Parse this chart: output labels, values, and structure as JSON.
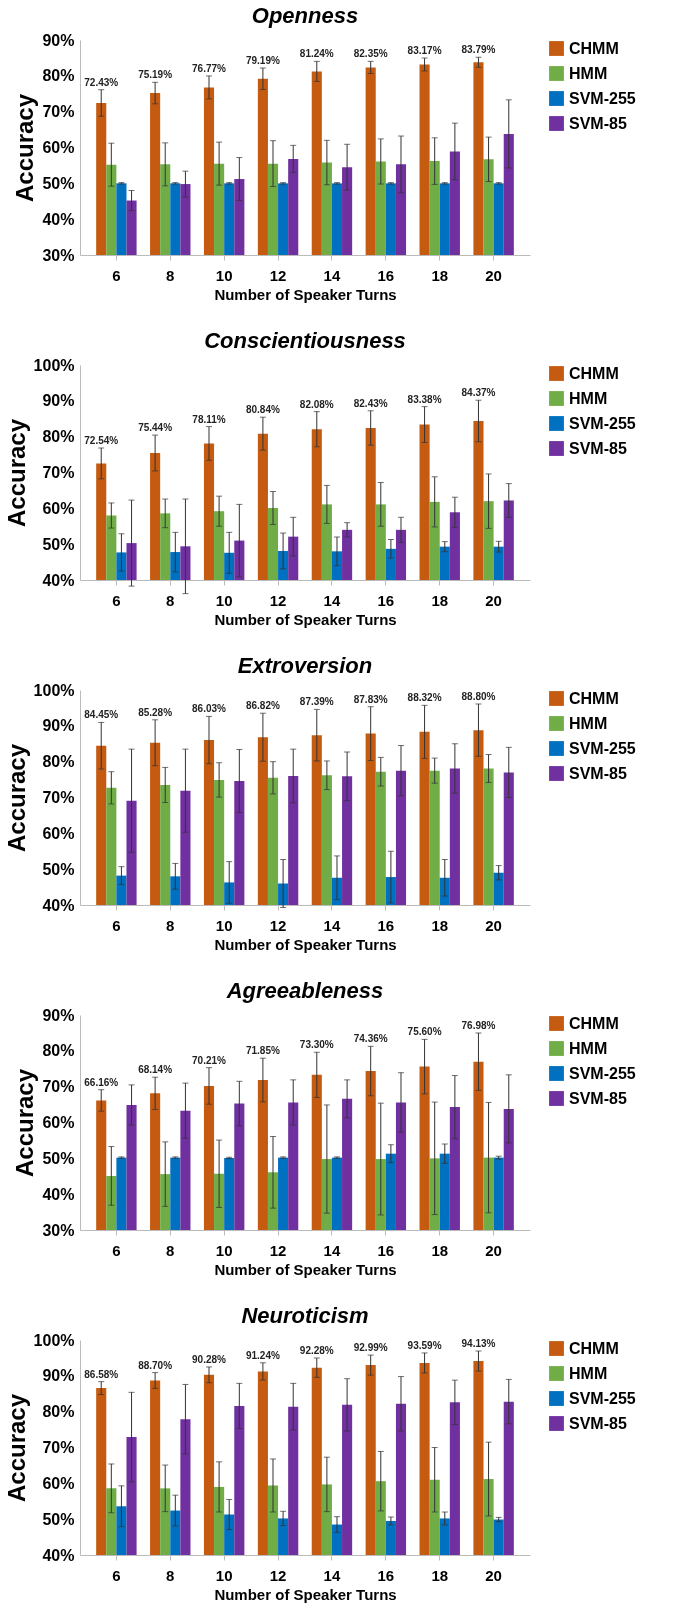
{
  "chart_data": [
    {
      "type": "bar",
      "title": "Openness",
      "xlabel": "Number of Speaker Turns",
      "ylabel": "Accuracy",
      "categories": [
        "6",
        "8",
        "10",
        "12",
        "14",
        "16",
        "18",
        "20"
      ],
      "ylim": [
        30,
        90
      ],
      "yticks": [
        {
          "value": 30,
          "label": "30%"
        },
        {
          "value": 40,
          "label": "40%"
        },
        {
          "value": 50,
          "label": "50%"
        },
        {
          "value": 60,
          "label": "60%"
        },
        {
          "value": 70,
          "label": "70%"
        },
        {
          "value": 80,
          "label": "80%"
        },
        {
          "value": 90,
          "label": "90%"
        }
      ],
      "legend": "right",
      "grid": false,
      "series": [
        {
          "name": "CHMM",
          "color": "#c55a11",
          "values": [
            72.43,
            75.19,
            76.77,
            79.19,
            81.24,
            82.35,
            83.17,
            83.79
          ],
          "errors": [
            3.7,
            3,
            3.2,
            3,
            2.8,
            1.7,
            1.8,
            1.4
          ],
          "value_labels": [
            "72.43%",
            "75.19%",
            "76.77%",
            "79.19%",
            "81.24%",
            "82.35%",
            "83.17%",
            "83.79%"
          ]
        },
        {
          "name": "HMM",
          "color": "#70ad47",
          "values": [
            55.2,
            55.3,
            55.5,
            55.5,
            55.8,
            56.1,
            56.2,
            56.7
          ],
          "errors": [
            6,
            6,
            6,
            6.4,
            6.2,
            6.3,
            6.5,
            6.2
          ]
        },
        {
          "name": "SVM-255",
          "color": "#0070c0",
          "values": [
            50,
            50,
            50,
            50,
            50,
            50,
            50,
            50
          ],
          "errors": [
            0.2,
            0.2,
            0.2,
            0.2,
            0.2,
            0.2,
            0.2,
            0.2
          ]
        },
        {
          "name": "SVM-85",
          "color": "#7030a0",
          "values": [
            45.2,
            49.8,
            51.2,
            56.8,
            54.5,
            55.3,
            58.9,
            63.8
          ],
          "errors": [
            2.8,
            3.6,
            6,
            3.8,
            6.4,
            7.9,
            7.9,
            9.5
          ]
        }
      ]
    },
    {
      "type": "bar",
      "title": "Conscientiousness",
      "xlabel": "Number of Speaker Turns",
      "ylabel": "Accuracy",
      "categories": [
        "6",
        "8",
        "10",
        "12",
        "14",
        "16",
        "18",
        "20"
      ],
      "ylim": [
        40,
        100
      ],
      "yticks": [
        {
          "value": 40,
          "label": "40%"
        },
        {
          "value": 50,
          "label": "50%"
        },
        {
          "value": 60,
          "label": "60%"
        },
        {
          "value": 70,
          "label": "70%"
        },
        {
          "value": 80,
          "label": "80%"
        },
        {
          "value": 90,
          "label": "90%"
        },
        {
          "value": 100,
          "label": "100%"
        }
      ],
      "legend": "right",
      "grid": false,
      "series": [
        {
          "name": "CHMM",
          "color": "#c55a11",
          "values": [
            72.54,
            75.44,
            78.11,
            80.84,
            82.08,
            82.43,
            83.38,
            84.37
          ],
          "errors": [
            4.3,
            5,
            4.7,
            4.6,
            4.9,
            4.8,
            5,
            5.8
          ],
          "value_labels": [
            "72.54%",
            "75.44%",
            "78.11%",
            "80.84%",
            "82.08%",
            "82.43%",
            "83.38%",
            "84.37%"
          ]
        },
        {
          "name": "HMM",
          "color": "#70ad47",
          "values": [
            58,
            58.6,
            59.2,
            60.1,
            61.1,
            61.1,
            61.8,
            62
          ],
          "errors": [
            3.5,
            4,
            4.2,
            4.6,
            5.3,
            6.1,
            7,
            7.6
          ]
        },
        {
          "name": "SVM-255",
          "color": "#0070c0",
          "values": [
            47.7,
            47.8,
            47.6,
            48.1,
            48,
            48.7,
            49.3,
            49.3
          ],
          "errors": [
            5.2,
            5.5,
            5.7,
            5,
            4,
            2.6,
            1.4,
            1.5
          ]
        },
        {
          "name": "SVM-85",
          "color": "#7030a0",
          "values": [
            50.3,
            49.4,
            51,
            52.1,
            54,
            54,
            58.9,
            62.2
          ],
          "errors": [
            12,
            13.2,
            10.1,
            5.4,
            2,
            3.5,
            4.2,
            4.7
          ]
        }
      ]
    },
    {
      "type": "bar",
      "title": "Extroversion",
      "xlabel": "Number of Speaker Turns",
      "ylabel": "Accuracy",
      "categories": [
        "6",
        "8",
        "10",
        "12",
        "14",
        "16",
        "18",
        "20"
      ],
      "ylim": [
        40,
        100
      ],
      "yticks": [
        {
          "value": 40,
          "label": "40%"
        },
        {
          "value": 50,
          "label": "50%"
        },
        {
          "value": 60,
          "label": "60%"
        },
        {
          "value": 70,
          "label": "70%"
        },
        {
          "value": 80,
          "label": "80%"
        },
        {
          "value": 90,
          "label": "90%"
        },
        {
          "value": 100,
          "label": "100%"
        }
      ],
      "legend": "right",
      "grid": false,
      "series": [
        {
          "name": "CHMM",
          "color": "#c55a11",
          "values": [
            84.45,
            85.28,
            86.03,
            86.82,
            87.39,
            87.83,
            88.32,
            88.8
          ],
          "errors": [
            6.5,
            6.4,
            6.6,
            6.7,
            7.2,
            7.5,
            7.4,
            7.3
          ],
          "value_labels": [
            "84.45%",
            "85.28%",
            "86.03%",
            "86.82%",
            "87.39%",
            "87.83%",
            "88.32%",
            "88.80%"
          ]
        },
        {
          "name": "HMM",
          "color": "#70ad47",
          "values": [
            72.7,
            73.5,
            74.9,
            75.5,
            76.2,
            77.2,
            77.5,
            78.1
          ],
          "errors": [
            4.5,
            4.9,
            4.8,
            4.5,
            4,
            4,
            3.5,
            3.9
          ]
        },
        {
          "name": "SVM-255",
          "color": "#0070c0",
          "values": [
            48.2,
            48,
            46.3,
            46,
            47.6,
            47.8,
            47.6,
            49
          ],
          "errors": [
            2.5,
            3.6,
            5.8,
            6.7,
            6.1,
            7.2,
            5.1,
            2
          ]
        },
        {
          "name": "SVM-85",
          "color": "#7030a0",
          "values": [
            69.1,
            71.9,
            74.6,
            76,
            75.9,
            77.5,
            78.1,
            77
          ],
          "errors": [
            14.4,
            11.6,
            8.8,
            7.5,
            6.8,
            7,
            6.9,
            7
          ]
        }
      ]
    },
    {
      "type": "bar",
      "title": "Agreeableness",
      "xlabel": "Number of Speaker Turns",
      "ylabel": "Accuracy",
      "categories": [
        "6",
        "8",
        "10",
        "12",
        "14",
        "16",
        "18",
        "20"
      ],
      "ylim": [
        30,
        90
      ],
      "yticks": [
        {
          "value": 30,
          "label": "30%"
        },
        {
          "value": 40,
          "label": "40%"
        },
        {
          "value": 50,
          "label": "50%"
        },
        {
          "value": 60,
          "label": "60%"
        },
        {
          "value": 70,
          "label": "70%"
        },
        {
          "value": 80,
          "label": "80%"
        },
        {
          "value": 90,
          "label": "90%"
        }
      ],
      "legend": "right",
      "grid": false,
      "series": [
        {
          "name": "CHMM",
          "color": "#c55a11",
          "values": [
            66.16,
            68.14,
            70.21,
            71.85,
            73.3,
            74.36,
            75.6,
            76.98
          ],
          "errors": [
            3,
            4.5,
            5.1,
            6.1,
            6.3,
            6.9,
            7.6,
            8
          ],
          "value_labels": [
            "66.16%",
            "68.14%",
            "70.21%",
            "71.85%",
            "73.30%",
            "74.36%",
            "75.60%",
            "76.98%"
          ]
        },
        {
          "name": "HMM",
          "color": "#70ad47",
          "values": [
            45.1,
            45.6,
            45.7,
            46.1,
            49.8,
            49.8,
            50,
            50.2
          ],
          "errors": [
            8.2,
            9,
            9.4,
            10,
            15.1,
            15.6,
            15.7,
            15.4
          ]
        },
        {
          "name": "SVM-255",
          "color": "#0070c0",
          "values": [
            50.2,
            50.2,
            50.1,
            50.2,
            50.2,
            51.3,
            51.3,
            50.2
          ],
          "errors": [
            0.2,
            0.2,
            0.2,
            0.2,
            0.2,
            2.5,
            2.7,
            0.4
          ]
        },
        {
          "name": "SVM-85",
          "color": "#7030a0",
          "values": [
            64.9,
            63.3,
            65.3,
            65.6,
            66.6,
            65.6,
            64.3,
            63.8
          ],
          "errors": [
            5.6,
            7.7,
            6.2,
            6.3,
            5.3,
            8.3,
            8.8,
            9.5
          ]
        }
      ]
    },
    {
      "type": "bar",
      "title": "Neuroticism",
      "xlabel": "Number of Speaker Turns",
      "ylabel": "Accuracy",
      "categories": [
        "6",
        "8",
        "10",
        "12",
        "14",
        "16",
        "18",
        "20"
      ],
      "ylim": [
        40,
        100
      ],
      "yticks": [
        {
          "value": 40,
          "label": "40%"
        },
        {
          "value": 50,
          "label": "50%"
        },
        {
          "value": 60,
          "label": "60%"
        },
        {
          "value": 70,
          "label": "70%"
        },
        {
          "value": 80,
          "label": "80%"
        },
        {
          "value": 90,
          "label": "90%"
        },
        {
          "value": 100,
          "label": "100%"
        }
      ],
      "legend": "right",
      "grid": false,
      "series": [
        {
          "name": "CHMM",
          "color": "#c55a11",
          "values": [
            86.58,
            88.7,
            90.28,
            91.24,
            92.28,
            92.99,
            93.59,
            94.13
          ],
          "errors": [
            1.8,
            2.2,
            2.2,
            2.4,
            2.7,
            2.8,
            2.8,
            2.8
          ],
          "value_labels": [
            "86.58%",
            "88.70%",
            "90.28%",
            "91.24%",
            "92.28%",
            "92.99%",
            "93.59%",
            "94.13%"
          ]
        },
        {
          "name": "HMM",
          "color": "#70ad47",
          "values": [
            58.6,
            58.6,
            59,
            59.4,
            59.7,
            60.6,
            61,
            61.2
          ],
          "errors": [
            6.8,
            6.5,
            7,
            7.4,
            7.6,
            8.3,
            9,
            10.3
          ]
        },
        {
          "name": "SVM-255",
          "color": "#0070c0",
          "values": [
            53.6,
            52.4,
            51.3,
            50.2,
            48.5,
            49.5,
            50.2,
            49.9
          ],
          "errors": [
            5.7,
            4.3,
            4.2,
            2,
            2.2,
            1.1,
            1.8,
            0.6
          ]
        },
        {
          "name": "SVM-85",
          "color": "#7030a0",
          "values": [
            72.9,
            77.9,
            81.6,
            81.4,
            81.9,
            82.2,
            82.6,
            82.8
          ],
          "errors": [
            12.5,
            9.7,
            6.3,
            6.5,
            7.3,
            7.6,
            6.2,
            6.2
          ]
        }
      ]
    }
  ]
}
